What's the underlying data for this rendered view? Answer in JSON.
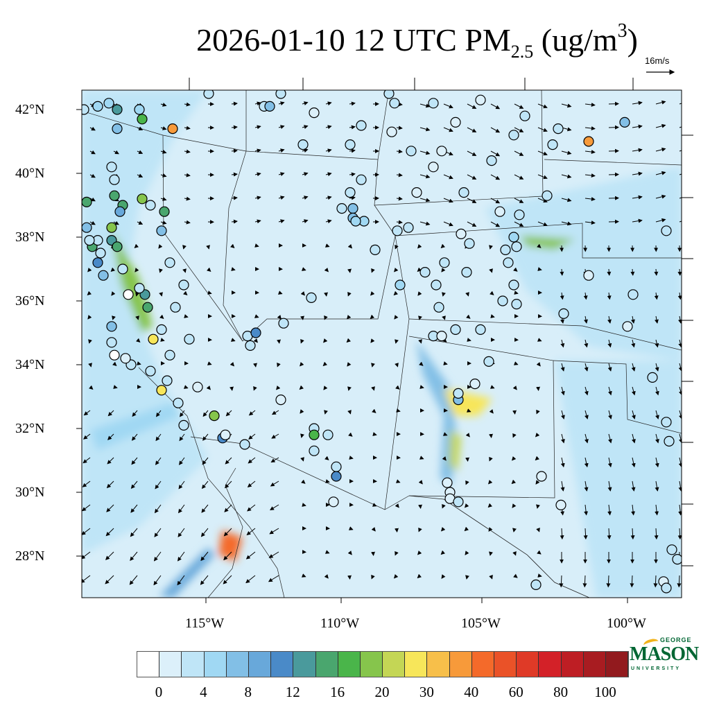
{
  "title": {
    "date": "2026-01-10 12 UTC PM",
    "sub": "2.5",
    "units_open": " (ug/m",
    "sup": "3",
    "units_close": ")"
  },
  "reference_vector": {
    "label": "16m/s",
    "speed_ms": 16
  },
  "lat_labels": [
    {
      "lat": 42,
      "label": "42°N"
    },
    {
      "lat": 40,
      "label": "40°N"
    },
    {
      "lat": 38,
      "label": "38°N"
    },
    {
      "lat": 36,
      "label": "36°N"
    },
    {
      "lat": 34,
      "label": "34°N"
    },
    {
      "lat": 32,
      "label": "32°N"
    },
    {
      "lat": 30,
      "label": "30°N"
    },
    {
      "lat": 28,
      "label": "28°N"
    }
  ],
  "lon_labels": [
    {
      "lon": -115,
      "label": "115°W"
    },
    {
      "lon": -110,
      "label": "110°W"
    },
    {
      "lon": -105,
      "label": "105°W"
    },
    {
      "lon": -100,
      "label": "100°W"
    }
  ],
  "colorbar": {
    "colors": [
      "#ffffff",
      "#dcf0fa",
      "#bfe5f7",
      "#a0d8f3",
      "#82bfe6",
      "#68a8da",
      "#4a8ac8",
      "#4a9a9c",
      "#4aa66e",
      "#4ab54a",
      "#86c54c",
      "#c4d655",
      "#f7e65a",
      "#f7bf4a",
      "#f79a3a",
      "#f46a2a",
      "#ea5228",
      "#df3a27",
      "#d32128",
      "#be1e24",
      "#a81c21",
      "#921a1e"
    ],
    "boundaries": [
      0,
      2,
      4,
      6,
      8,
      10,
      12,
      14,
      16,
      18,
      20,
      25,
      30,
      35,
      40,
      50,
      60,
      70,
      80,
      90,
      100
    ],
    "labels": [
      "0",
      "4",
      "8",
      "12",
      "16",
      "20",
      "30",
      "40",
      "60",
      "80",
      "100"
    ]
  },
  "logo": {
    "top": "GEORGE",
    "main": "MASON",
    "bottom": "UNIVERSITY"
  },
  "stations": [
    [
      -119.4,
      42.0,
      3
    ],
    [
      -118.9,
      42.1,
      6
    ],
    [
      -118.5,
      42.2,
      6
    ],
    [
      -118.2,
      42.0,
      14
    ],
    [
      -117.4,
      42.0,
      5
    ],
    [
      -117.3,
      41.7,
      18
    ],
    [
      -116.2,
      41.4,
      40
    ],
    [
      -118.2,
      41.4,
      7
    ],
    [
      -119.3,
      39.1,
      15
    ],
    [
      -118.4,
      40.2,
      4
    ],
    [
      -118.3,
      39.8,
      4
    ],
    [
      -118.3,
      39.3,
      16
    ],
    [
      -118.0,
      39.0,
      16
    ],
    [
      -118.1,
      38.8,
      10
    ],
    [
      -118.4,
      38.3,
      20
    ],
    [
      -119.3,
      38.3,
      8
    ],
    [
      -119.1,
      37.7,
      16
    ],
    [
      -118.4,
      37.9,
      14
    ],
    [
      -118.2,
      37.7,
      16
    ],
    [
      -118.8,
      37.5,
      4
    ],
    [
      -118.9,
      37.2,
      12
    ],
    [
      -118.7,
      36.8,
      8
    ],
    [
      -118.0,
      37.0,
      4
    ],
    [
      -117.8,
      36.2,
      0
    ],
    [
      -117.2,
      36.2,
      14
    ],
    [
      -117.1,
      35.8,
      15
    ],
    [
      -116.9,
      34.8,
      30
    ],
    [
      -116.6,
      35.1,
      4
    ],
    [
      -118.4,
      35.2,
      8
    ],
    [
      -118.4,
      34.7,
      4
    ],
    [
      -118.3,
      34.3,
      0
    ],
    [
      -117.7,
      34.0,
      4
    ],
    [
      -117.0,
      33.8,
      4
    ],
    [
      -116.4,
      33.5,
      4
    ],
    [
      -115.3,
      33.3,
      1
    ],
    [
      -116.6,
      33.2,
      30
    ],
    [
      -115.8,
      32.1,
      4
    ],
    [
      -114.7,
      32.4,
      20
    ],
    [
      -114.4,
      31.7,
      12
    ],
    [
      -113.6,
      31.5,
      3
    ],
    [
      -114.3,
      31.8,
      1
    ],
    [
      -117.3,
      39.2,
      20
    ],
    [
      -116.5,
      38.8,
      16
    ],
    [
      -116.6,
      38.2,
      8
    ],
    [
      -117.0,
      39.0,
      4
    ],
    [
      -116.3,
      37.2,
      4
    ],
    [
      -115.8,
      36.5,
      4
    ],
    [
      -116.1,
      35.8,
      4
    ],
    [
      -115.6,
      34.8,
      3
    ],
    [
      -116.3,
      34.3,
      4
    ],
    [
      -118.9,
      37.9,
      4
    ],
    [
      -119.2,
      37.9,
      4
    ],
    [
      -117.4,
      36.4,
      4
    ],
    [
      -117.9,
      34.2,
      2
    ],
    [
      -116.0,
      32.8,
      4
    ],
    [
      -114.9,
      42.5,
      4
    ],
    [
      -112.9,
      42.1,
      4
    ],
    [
      -112.7,
      42.1,
      8
    ],
    [
      -112.3,
      42.5,
      4
    ],
    [
      -111.1,
      41.9,
      1
    ],
    [
      -111.5,
      40.9,
      4
    ],
    [
      -109.8,
      40.9,
      4
    ],
    [
      -109.4,
      41.5,
      3
    ],
    [
      -109.8,
      39.4,
      4
    ],
    [
      -109.4,
      39.8,
      4
    ],
    [
      -110.1,
      38.9,
      4
    ],
    [
      -109.7,
      38.9,
      7
    ],
    [
      -109.7,
      38.6,
      7
    ],
    [
      -109.3,
      38.5,
      6
    ],
    [
      -109.6,
      38.5,
      6
    ],
    [
      -108.9,
      37.6,
      4
    ],
    [
      -111.2,
      36.1,
      4
    ],
    [
      -112.2,
      35.3,
      3
    ],
    [
      -113.5,
      34.9,
      4
    ],
    [
      -113.2,
      35.0,
      12
    ],
    [
      -113.4,
      34.6,
      4
    ],
    [
      -112.3,
      32.9,
      2
    ],
    [
      -111.1,
      32.0,
      4
    ],
    [
      -111.1,
      31.8,
      18
    ],
    [
      -110.6,
      31.8,
      4
    ],
    [
      -111.1,
      31.3,
      4
    ],
    [
      -110.3,
      30.8,
      4
    ],
    [
      -110.3,
      30.5,
      12
    ],
    [
      -110.4,
      29.7,
      1
    ],
    [
      -108.4,
      42.5,
      4
    ],
    [
      -108.2,
      42.2,
      4
    ],
    [
      -108.3,
      41.3,
      1
    ],
    [
      -107.6,
      40.7,
      3
    ],
    [
      -108.1,
      38.2,
      4
    ],
    [
      -107.7,
      38.3,
      4
    ],
    [
      -108.0,
      36.5,
      6
    ],
    [
      -106.8,
      42.2,
      4
    ],
    [
      -106.0,
      41.6,
      1
    ],
    [
      -105.1,
      42.3,
      1
    ],
    [
      -106.5,
      40.7,
      1
    ],
    [
      -106.8,
      40.2,
      1
    ],
    [
      -107.4,
      39.4,
      1
    ],
    [
      -105.7,
      39.4,
      4
    ],
    [
      -104.7,
      40.4,
      3
    ],
    [
      -103.9,
      41.2,
      4
    ],
    [
      -103.5,
      41.8,
      4
    ],
    [
      -102.3,
      41.4,
      3
    ],
    [
      -102.5,
      40.9,
      4
    ],
    [
      -101.2,
      41.0,
      40
    ],
    [
      -99.9,
      41.6,
      8
    ],
    [
      -102.7,
      39.3,
      4
    ],
    [
      -104.4,
      38.8,
      1
    ],
    [
      -103.7,
      38.7,
      4
    ],
    [
      -103.9,
      38.0,
      6
    ],
    [
      -103.8,
      37.7,
      4
    ],
    [
      -104.1,
      37.2,
      4
    ],
    [
      -104.2,
      37.6,
      4
    ],
    [
      -103.9,
      36.5,
      4
    ],
    [
      -104.3,
      36.0,
      4
    ],
    [
      -103.8,
      35.9,
      4
    ],
    [
      -106.4,
      37.2,
      4
    ],
    [
      -107.1,
      36.9,
      4
    ],
    [
      -106.7,
      36.5,
      4
    ],
    [
      -105.6,
      36.9,
      4
    ],
    [
      -106.6,
      35.8,
      4
    ],
    [
      -105.1,
      35.1,
      4
    ],
    [
      -106.8,
      34.9,
      4
    ],
    [
      -106.5,
      34.9,
      1
    ],
    [
      -106.0,
      35.1,
      4
    ],
    [
      -104.8,
      34.1,
      4
    ],
    [
      -105.3,
      33.4,
      1
    ],
    [
      -105.9,
      32.9,
      8
    ],
    [
      -105.9,
      33.1,
      4
    ],
    [
      -106.3,
      30.3,
      1
    ],
    [
      -106.2,
      30.0,
      1
    ],
    [
      -106.2,
      29.8,
      1
    ],
    [
      -105.9,
      29.7,
      4
    ],
    [
      -102.9,
      30.5,
      1
    ],
    [
      -102.2,
      29.6,
      1
    ],
    [
      -101.2,
      36.8,
      1
    ],
    [
      -99.8,
      35.2,
      1
    ],
    [
      -99.6,
      36.2,
      4
    ],
    [
      -102.1,
      35.6,
      4
    ],
    [
      -98.4,
      38.2,
      4
    ],
    [
      -98.9,
      33.6,
      4
    ],
    [
      -98.4,
      32.2,
      4
    ],
    [
      -98.3,
      31.6,
      4
    ],
    [
      -98.2,
      28.2,
      4
    ],
    [
      -98.0,
      27.9,
      4
    ],
    [
      -98.5,
      27.2,
      1
    ],
    [
      -98.4,
      27.0,
      4
    ],
    [
      -103.1,
      27.1,
      4
    ],
    [
      -105.5,
      37.8,
      4
    ],
    [
      -105.8,
      38.1,
      1
    ]
  ]
}
